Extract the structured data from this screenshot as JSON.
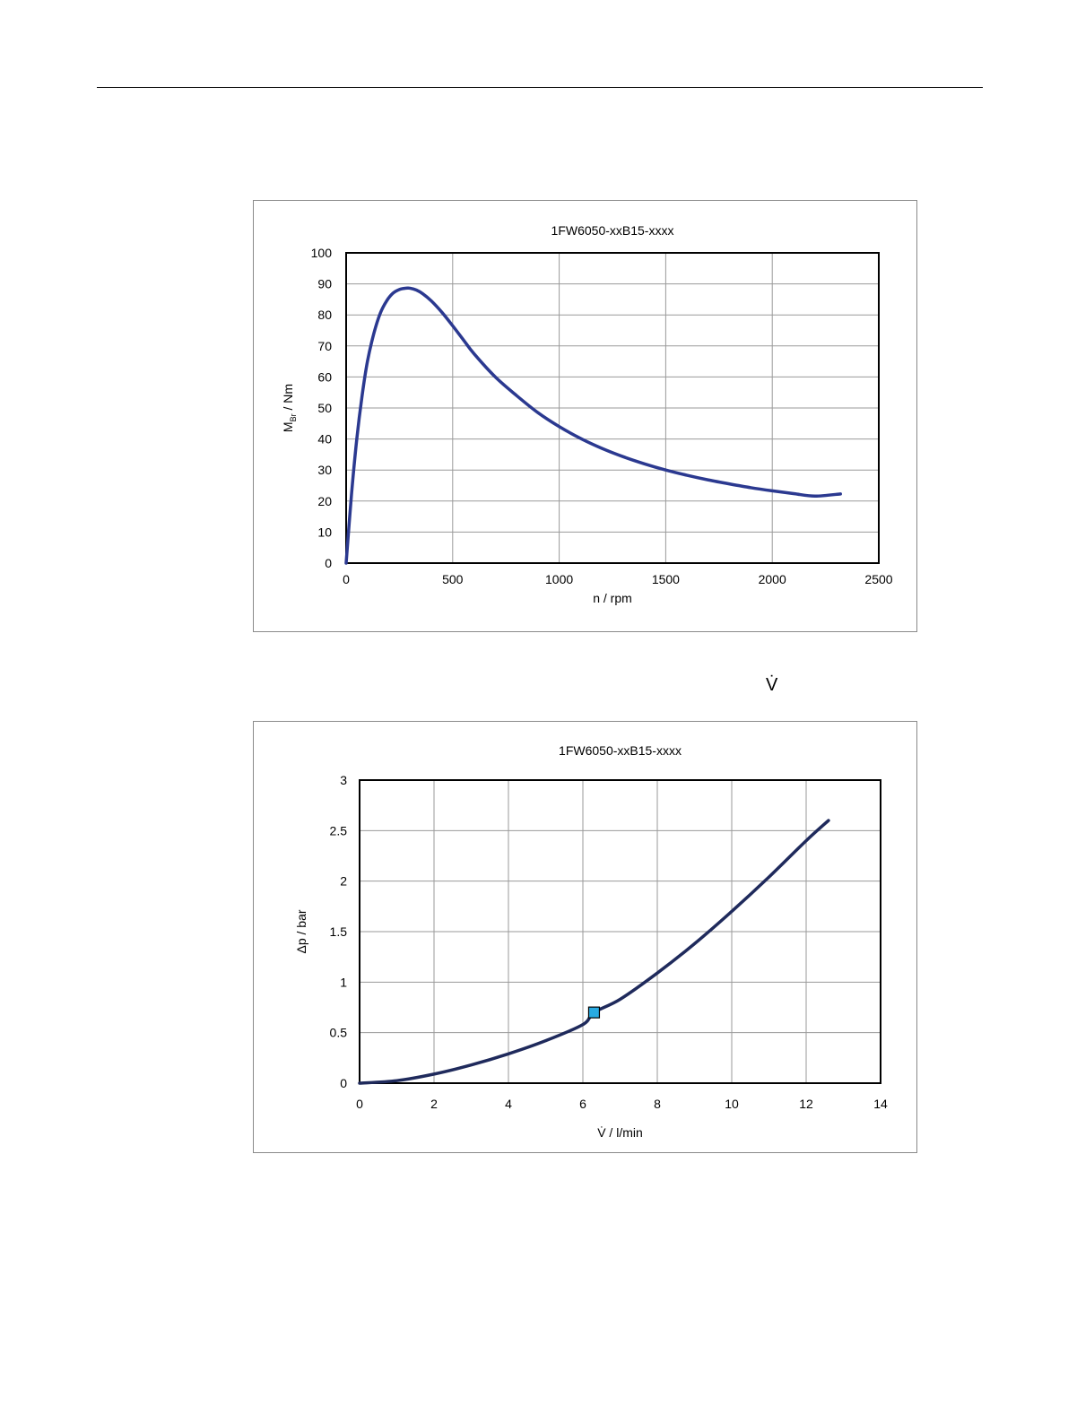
{
  "caption_symbol": "V̇",
  "chart_data": [
    {
      "type": "line",
      "title": "1FW6050-xxB15-xxxx",
      "xlabel": "n / rpm",
      "ylabel": "M_Br / Nm",
      "ylabel_main": "M",
      "ylabel_sub": "Br",
      "ylabel_rest": " / Nm",
      "xlim": [
        0,
        2500
      ],
      "ylim": [
        0,
        100
      ],
      "x_ticks": [
        "0",
        "500",
        "1000",
        "1500",
        "2000",
        "2500"
      ],
      "y_ticks": [
        "0",
        "10",
        "20",
        "30",
        "40",
        "50",
        "60",
        "70",
        "80",
        "90",
        "100"
      ],
      "grid": true,
      "line_color": "#2b3990",
      "series": [
        {
          "x": [
            0,
            25,
            50,
            75,
            100,
            130,
            160,
            190,
            220,
            250,
            280,
            300,
            330,
            360,
            400,
            450,
            500,
            550,
            600,
            700,
            800,
            900,
            1000,
            1100,
            1200,
            1300,
            1400,
            1500,
            1600,
            1700,
            1800,
            1900,
            2000,
            2100,
            2200,
            2320
          ],
          "y": [
            0,
            22,
            40,
            54,
            65,
            74,
            80.5,
            84.5,
            87,
            88.2,
            88.6,
            88.6,
            88,
            86.8,
            84.5,
            80.8,
            76.5,
            72,
            67.5,
            60,
            54,
            48.5,
            44,
            40.2,
            37,
            34.3,
            32,
            30,
            28.3,
            26.8,
            25.5,
            24.3,
            23.3,
            22.4,
            21.6,
            22.3
          ]
        }
      ]
    },
    {
      "type": "line",
      "title": "1FW6050-xxB15-xxxx",
      "xlabel": "V̇ / l/min",
      "ylabel": "Δp / bar",
      "xlim": [
        0,
        14
      ],
      "ylim": [
        0,
        3
      ],
      "x_ticks": [
        "0",
        "2",
        "4",
        "6",
        "8",
        "10",
        "12",
        "14"
      ],
      "y_ticks": [
        "0",
        "0.5",
        "1",
        "1.5",
        "2",
        "2.5",
        "3"
      ],
      "grid": true,
      "line_color": "#1f2a5c",
      "marker_color": "#29abe2",
      "series": [
        {
          "x": [
            0,
            1,
            2,
            3,
            4,
            5,
            6,
            6.3,
            7,
            8,
            9,
            10,
            11,
            12,
            12.6
          ],
          "y": [
            0,
            0.025,
            0.09,
            0.18,
            0.29,
            0.42,
            0.58,
            0.7,
            0.83,
            1.09,
            1.38,
            1.7,
            2.04,
            2.4,
            2.6
          ]
        }
      ],
      "marker": {
        "x": 6.3,
        "y": 0.7
      }
    }
  ]
}
